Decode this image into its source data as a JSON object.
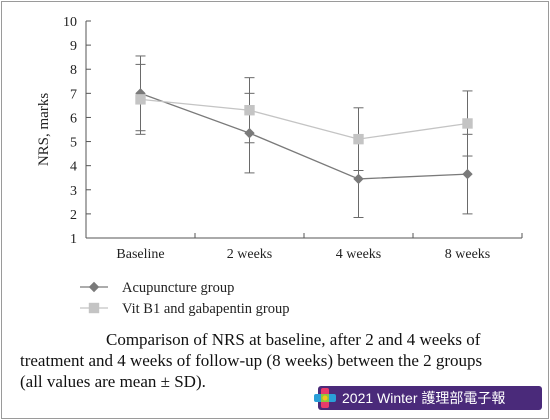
{
  "chart_data": {
    "type": "line",
    "categories": [
      "Baseline",
      "2 weeks",
      "4 weeks",
      "8 weeks"
    ],
    "ylabel": "NRS, marks",
    "ylim": [
      1,
      10
    ],
    "yticks": [
      "1",
      "2",
      "3",
      "4",
      "5",
      "6",
      "7",
      "8",
      "9",
      "10"
    ],
    "grid": false,
    "legend_position": "bottom-left",
    "series": [
      {
        "name": "Acupuncture group",
        "marker": "diamond",
        "color": "#7a7a7a",
        "values": [
          7.0,
          5.35,
          3.45,
          3.65
        ],
        "sd": [
          1.55,
          1.65,
          1.6,
          1.65
        ]
      },
      {
        "name": "Vit B1 and gabapentin group",
        "marker": "square",
        "color": "#c4c4c4",
        "values": [
          6.75,
          6.3,
          5.1,
          5.75
        ],
        "sd": [
          1.45,
          1.35,
          1.3,
          1.35
        ]
      }
    ]
  },
  "caption": {
    "line1": "Comparison of NRS at baseline, after 2 and 4 weeks of",
    "line2": "treatment and 4 weeks of follow-up (8 weeks) between the 2 groups",
    "line3": "(all values are mean ± SD)."
  },
  "banner": {
    "text": "2021 Winter 護理部電子報",
    "color": "#4a2a7a",
    "logo_icon": "colorful-cross-logo-icon"
  }
}
